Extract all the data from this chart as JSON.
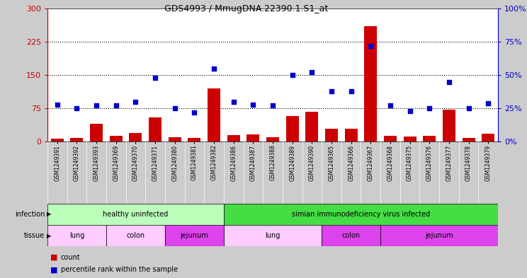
{
  "title": "GDS4993 / MmugDNA.22390.1.S1_at",
  "samples": [
    "GSM1249391",
    "GSM1249392",
    "GSM1249393",
    "GSM1249369",
    "GSM1249370",
    "GSM1249371",
    "GSM1249380",
    "GSM1249381",
    "GSM1249382",
    "GSM1249386",
    "GSM1249387",
    "GSM1249388",
    "GSM1249389",
    "GSM1249390",
    "GSM1249365",
    "GSM1249366",
    "GSM1249367",
    "GSM1249368",
    "GSM1249375",
    "GSM1249376",
    "GSM1249377",
    "GSM1249378",
    "GSM1249379"
  ],
  "counts": [
    7,
    9,
    40,
    14,
    19,
    55,
    10,
    8,
    120,
    15,
    17,
    10,
    58,
    68,
    30,
    30,
    260,
    14,
    12,
    14,
    72,
    9,
    18
  ],
  "percentiles": [
    28,
    25,
    27,
    27,
    30,
    48,
    25,
    22,
    55,
    30,
    28,
    27,
    50,
    52,
    38,
    38,
    72,
    27,
    23,
    25,
    45,
    25,
    29
  ],
  "left_ylim": [
    0,
    300
  ],
  "right_ylim": [
    0,
    100
  ],
  "left_yticks": [
    0,
    75,
    150,
    225,
    300
  ],
  "right_yticks": [
    0,
    25,
    50,
    75,
    100
  ],
  "right_yticklabels": [
    "0%",
    "25%",
    "50%",
    "75%",
    "100%"
  ],
  "hlines": [
    75,
    150,
    225
  ],
  "bar_color": "#cc0000",
  "dot_color": "#0000cc",
  "infection_groups": [
    {
      "label": "healthy uninfected",
      "start": 0,
      "end": 8,
      "color": "#bbffbb"
    },
    {
      "label": "simian immunodeficiency virus infected",
      "start": 9,
      "end": 22,
      "color": "#44dd44"
    }
  ],
  "tissue_groups": [
    {
      "label": "lung",
      "start": 0,
      "end": 2,
      "color": "#ffccff"
    },
    {
      "label": "colon",
      "start": 3,
      "end": 5,
      "color": "#ffccff"
    },
    {
      "label": "jejunum",
      "start": 6,
      "end": 8,
      "color": "#dd44ee"
    },
    {
      "label": "lung",
      "start": 9,
      "end": 13,
      "color": "#ffccff"
    },
    {
      "label": "colon",
      "start": 14,
      "end": 16,
      "color": "#dd44ee"
    },
    {
      "label": "jejunum",
      "start": 17,
      "end": 22,
      "color": "#dd44ee"
    }
  ],
  "fig_bg": "#cccccc",
  "plot_bg": "#ffffff",
  "xticklabel_bg": "#dddddd"
}
